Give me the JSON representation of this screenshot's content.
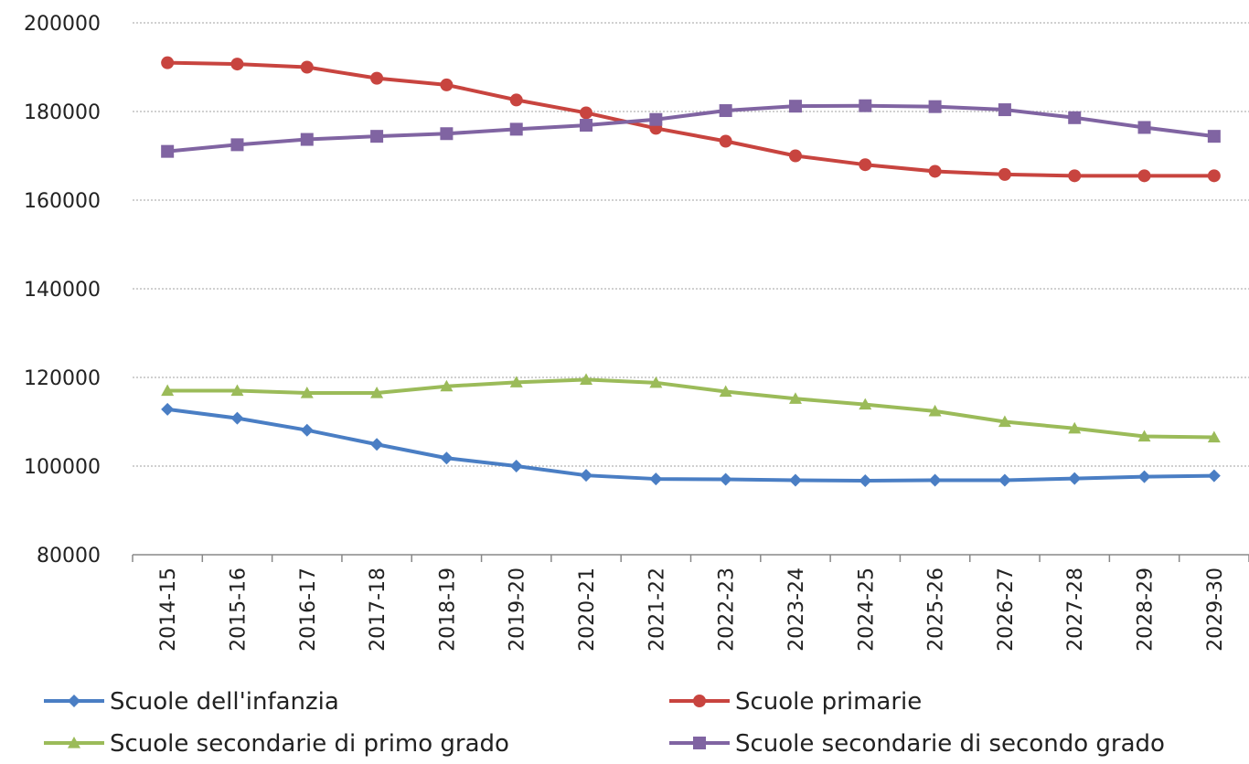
{
  "chart_data": {
    "type": "line",
    "title": "",
    "xlabel": "",
    "ylabel": "",
    "ylim": [
      80000,
      200000
    ],
    "yticks": [
      "80000",
      "100000",
      "120000",
      "140000",
      "160000",
      "180000",
      "200000"
    ],
    "grid": true,
    "legend_position": "bottom",
    "categories": [
      "2014-15",
      "2015-16",
      "2016-17",
      "2017-18",
      "2018-19",
      "2019-20",
      "2020-21",
      "2021-22",
      "2022-23",
      "2023-24",
      "2024-25",
      "2025-26",
      "2026-27",
      "2027-28",
      "2028-29",
      "2029-30"
    ],
    "series": [
      {
        "name": "Scuole dell'infanzia",
        "color": "#4a7ec4",
        "marker": "diamond",
        "values": [
          112800,
          110800,
          108100,
          104900,
          101800,
          100000,
          97900,
          97100,
          97000,
          96800,
          96700,
          96800,
          96800,
          97200,
          97600,
          97800
        ]
      },
      {
        "name": "Scuole primarie",
        "color": "#c8443f",
        "marker": "circle",
        "values": [
          191000,
          190700,
          190000,
          187500,
          186000,
          182600,
          179700,
          176200,
          173300,
          170000,
          168000,
          166500,
          165800,
          165500,
          165500,
          165500
        ]
      },
      {
        "name": "Scuole secondarie di primo grado",
        "color": "#9bbb59",
        "marker": "triangle",
        "values": [
          117000,
          117000,
          116500,
          116500,
          118000,
          118900,
          119500,
          118800,
          116800,
          115200,
          113900,
          112400,
          110000,
          108500,
          106700,
          106500
        ]
      },
      {
        "name": "Scuole secondarie di secondo grado",
        "color": "#8064a2",
        "marker": "square",
        "values": [
          171000,
          172500,
          173700,
          174400,
          175000,
          176000,
          176900,
          178200,
          180200,
          181200,
          181300,
          181100,
          180400,
          178600,
          176400,
          174400
        ]
      }
    ]
  }
}
